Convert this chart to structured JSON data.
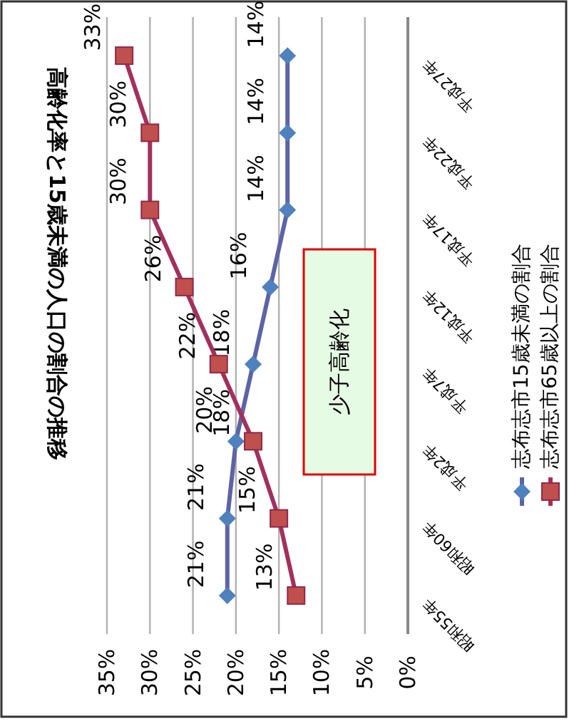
{
  "chart_data": {
    "type": "line",
    "orientation": "horizontal",
    "title": "高齢化率と15歳未満の人口の割合の推移",
    "categories": [
      "平成27年",
      "平成22年",
      "平成17年",
      "平成12年",
      "平成7年",
      "平成2年",
      "昭和60年",
      "昭和55年"
    ],
    "series": [
      {
        "name": "志布志市15歳未満の割合",
        "color": "#4f81bd",
        "marker": "diamond",
        "values": [
          14,
          14,
          14,
          16,
          18,
          20,
          21,
          21
        ],
        "value_labels": [
          "14%",
          "14%",
          "14%",
          "16%",
          "18%",
          "20%",
          "21%",
          "21%"
        ]
      },
      {
        "name": "志布志市65歳以上の割合",
        "color": "#c0504d",
        "marker": "square",
        "values": [
          33,
          30,
          30,
          26,
          22,
          18,
          15,
          13
        ],
        "value_labels": [
          "33%",
          "30%",
          "30%",
          "26%",
          "22%",
          "18%",
          "15%",
          "13%"
        ]
      }
    ],
    "xlim": [
      35,
      0
    ],
    "xticks": [
      {
        "value": 35,
        "label": "35%"
      },
      {
        "value": 30,
        "label": "30%"
      },
      {
        "value": 25,
        "label": "25%"
      },
      {
        "value": 20,
        "label": "20%"
      },
      {
        "value": 15,
        "label": "15%"
      },
      {
        "value": 10,
        "label": "10%"
      },
      {
        "value": 5,
        "label": "5%"
      },
      {
        "value": 0,
        "label": "0%"
      }
    ],
    "grid": "x",
    "legend": "right",
    "annotations": [
      "少子高齢化"
    ]
  }
}
